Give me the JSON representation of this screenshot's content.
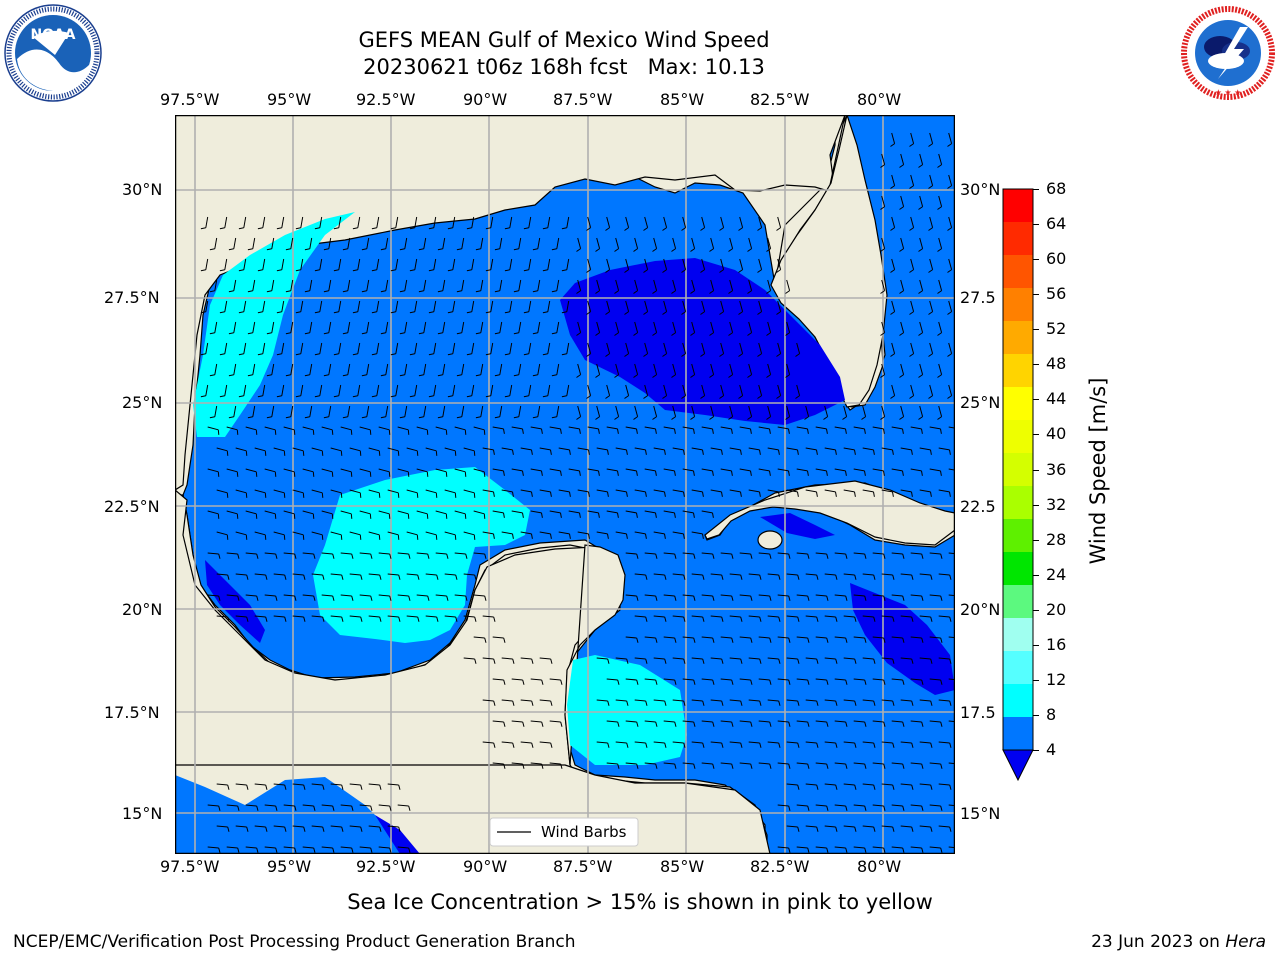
{
  "title": {
    "line1": "GEFS MEAN Gulf of Mexico Wind Speed",
    "line2": "20230621 t06z 168h fcst   Max: 10.13"
  },
  "logos": {
    "noaa": {
      "center_text": "NOAA",
      "ring_text": "NATIONAL OCEANIC AND ATMOSPHERIC ADMINISTRATION · U.S. DEPARTMENT OF COMMERCE"
    },
    "nws": {
      "ring_text": "NATIONAL WEATHER SERVICE"
    }
  },
  "map": {
    "lon_ticks": [
      "97.5°W",
      "95°W",
      "92.5°W",
      "90°W",
      "87.5°W",
      "85°W",
      "82.5°W",
      "80°W"
    ],
    "lat_ticks": [
      "30°N",
      "27.5°N",
      "25°N",
      "22.5°N",
      "20°N",
      "17.5°N",
      "15°N"
    ],
    "lat_ticks_right": [
      "30°N",
      "27.5",
      "25°N",
      "22.5",
      "20°N",
      "17.5",
      "15°N"
    ],
    "legend_label": "Wind Barbs",
    "colors": {
      "land": "#efeddc",
      "level_4_8": "#0077ff",
      "level_8_12": "#00ffff",
      "level_below_4": "#0000f0",
      "grid": "#b0b0b0"
    }
  },
  "colorbar": {
    "label": "Wind Speed [m/s]",
    "ticks": [
      "68",
      "64",
      "60",
      "56",
      "52",
      "48",
      "44",
      "40",
      "36",
      "32",
      "28",
      "24",
      "20",
      "16",
      "12",
      "8",
      "4"
    ],
    "colors_top_to_bottom": [
      "#ff0000",
      "#ff2a00",
      "#ff5500",
      "#ff8000",
      "#ffaa00",
      "#ffd400",
      "#ffff00",
      "#eeff00",
      "#d4ff00",
      "#aaff00",
      "#5ef000",
      "#00e600",
      "#5cf97f",
      "#a0fff0",
      "#55ffff",
      "#00ffff",
      "#0077ff"
    ],
    "extend_color": "#0000f0"
  },
  "note": "Sea Ice Concentration > 15% is shown in pink to yellow",
  "footer": {
    "left": "NCEP/EMC/Verification Post Processing Product Generation Branch",
    "right_prefix": "23 Jun 2023 on ",
    "right_emph": "Hera"
  }
}
